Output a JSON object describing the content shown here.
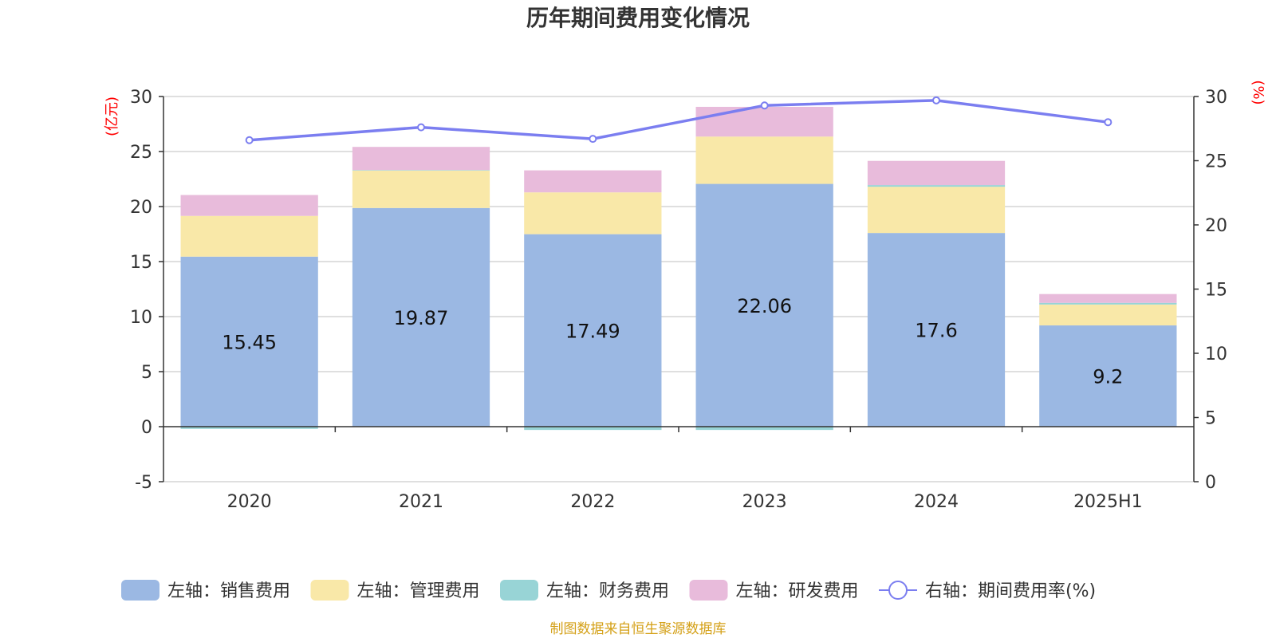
{
  "chart_data": {
    "type": "bar",
    "title": "历年期间费用变化情况",
    "left_unit": "(亿元)",
    "right_unit": "(%)",
    "categories": [
      "2020",
      "2021",
      "2022",
      "2023",
      "2024",
      "2025H1"
    ],
    "left_axis": {
      "ylim": [
        -5,
        30
      ],
      "ticks": [
        -5,
        0,
        5,
        10,
        15,
        20,
        25,
        30
      ]
    },
    "right_axis": {
      "ylim": [
        0,
        30
      ],
      "ticks": [
        0,
        5,
        10,
        15,
        20,
        25,
        30
      ]
    },
    "series": [
      {
        "name": "左轴：销售费用",
        "kind": "bar",
        "axis": "left",
        "color": "#9bb8e3",
        "values": [
          15.45,
          19.87,
          17.49,
          22.06,
          17.6,
          9.2
        ],
        "show_labels": true
      },
      {
        "name": "左轴：管理费用",
        "kind": "bar",
        "axis": "left",
        "color": "#f9e8a8",
        "values": [
          3.7,
          3.4,
          3.8,
          4.3,
          4.2,
          1.9
        ]
      },
      {
        "name": "左轴：财务费用",
        "kind": "bar",
        "axis": "left",
        "color": "#98d4d6",
        "values": [
          -0.2,
          0.05,
          -0.3,
          -0.3,
          0.15,
          0.15
        ]
      },
      {
        "name": "左轴：研发费用",
        "kind": "bar",
        "axis": "left",
        "color": "#e8bbdb",
        "values": [
          1.9,
          2.1,
          2.0,
          2.7,
          2.2,
          0.8
        ]
      },
      {
        "name": "右轴：期间费用率(%)",
        "kind": "line",
        "axis": "right",
        "color": "#7b7ef0",
        "values": [
          26.6,
          27.6,
          26.7,
          29.3,
          29.7,
          28.0
        ]
      }
    ],
    "grid": true,
    "legend": "bottom"
  },
  "source_note": "制图数据来自恒生聚源数据库"
}
